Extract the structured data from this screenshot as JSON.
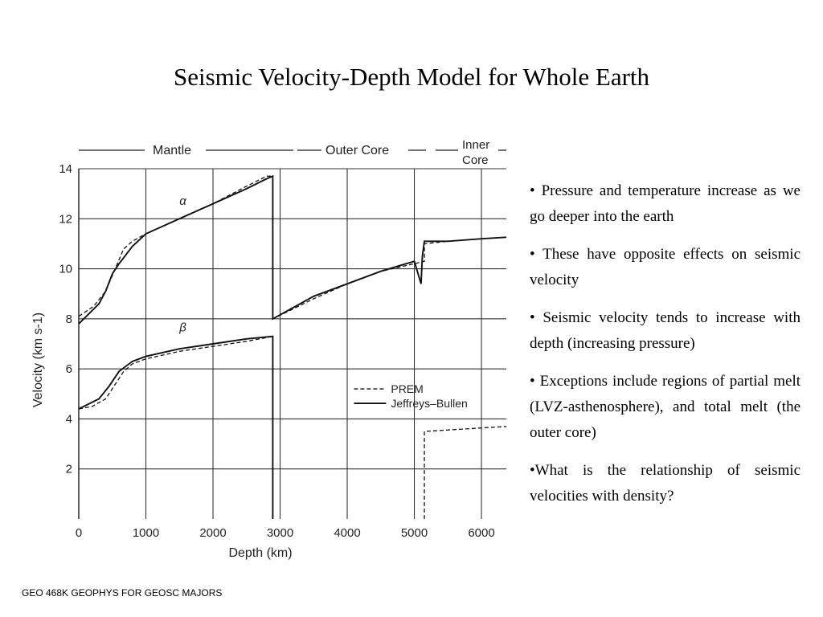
{
  "title": "Seismic Velocity-Depth Model for Whole Earth",
  "footer": "GEO 468K GEOPHYS FOR GEOSC MAJORS",
  "bullets": [
    "• Pressure and temperature increase as we go deeper into the earth",
    "• These have opposite effects on seismic velocity",
    "• Seismic velocity tends to increase with depth (increasing pressure)",
    "• Exceptions include regions of partial melt (LVZ-asthenosphere), and total melt (the outer core)",
    "•What is the relationship of seismic velocities with density?"
  ],
  "chart_data": {
    "type": "line",
    "xlabel": "Depth (km)",
    "ylabel": "Velocity (km s-1)",
    "xlim": [
      0,
      6371
    ],
    "ylim": [
      0,
      14
    ],
    "xticks": [
      0,
      1000,
      2000,
      3000,
      4000,
      5000,
      6000
    ],
    "yticks": [
      2,
      4,
      6,
      8,
      10,
      12,
      14
    ],
    "grid": true,
    "legend_position": "center-right",
    "region_labels": {
      "mantle": "Mantle",
      "outer_core": "Outer Core",
      "inner_core_1": "Inner",
      "inner_core_2": "Core"
    },
    "curve_labels": {
      "p_wave": "α",
      "s_wave": "β"
    },
    "series": [
      {
        "name": "PREM",
        "style": "dashed",
        "wave": "P",
        "x": [
          0,
          220,
          400,
          670,
          800,
          1000,
          1500,
          2000,
          2500,
          2800,
          2891,
          2891,
          3500,
          4000,
          4500,
          5000,
          5150,
          5150,
          5500,
          6000,
          6371
        ],
        "y": [
          8.1,
          8.5,
          9.1,
          10.8,
          11.1,
          11.4,
          12.0,
          12.6,
          13.3,
          13.7,
          13.7,
          8.0,
          8.8,
          9.4,
          9.9,
          10.2,
          10.3,
          11.0,
          11.1,
          11.2,
          11.26
        ]
      },
      {
        "name": "Jeffreys–Bullen",
        "style": "solid",
        "wave": "P",
        "x": [
          0,
          300,
          400,
          500,
          600,
          800,
          1000,
          1500,
          2000,
          2500,
          2800,
          2891,
          2891,
          3500,
          4000,
          4500,
          5000,
          5100,
          5120,
          5150,
          5500,
          6000,
          6371
        ],
        "y": [
          7.8,
          8.6,
          9.1,
          9.8,
          10.2,
          10.9,
          11.4,
          12.0,
          12.6,
          13.2,
          13.6,
          13.7,
          8.0,
          8.9,
          9.4,
          9.9,
          10.3,
          9.4,
          10.5,
          11.1,
          11.1,
          11.2,
          11.26
        ]
      },
      {
        "name": "PREM",
        "style": "dashed",
        "wave": "S",
        "x": [
          0,
          200,
          400,
          670,
          800,
          1000,
          1500,
          2000,
          2500,
          2891,
          2891
        ],
        "y": [
          4.4,
          4.5,
          4.8,
          5.9,
          6.2,
          6.4,
          6.7,
          6.9,
          7.1,
          7.3,
          0
        ],
        "inner_core": {
          "x": [
            5150,
            5150,
            6371
          ],
          "y": [
            0,
            3.5,
            3.7
          ]
        }
      },
      {
        "name": "Jeffreys–Bullen",
        "style": "solid",
        "wave": "S",
        "x": [
          0,
          300,
          450,
          600,
          800,
          1000,
          1500,
          2000,
          2500,
          2891,
          2891
        ],
        "y": [
          4.4,
          4.8,
          5.3,
          5.9,
          6.3,
          6.5,
          6.8,
          7.0,
          7.2,
          7.3,
          0
        ]
      }
    ]
  }
}
